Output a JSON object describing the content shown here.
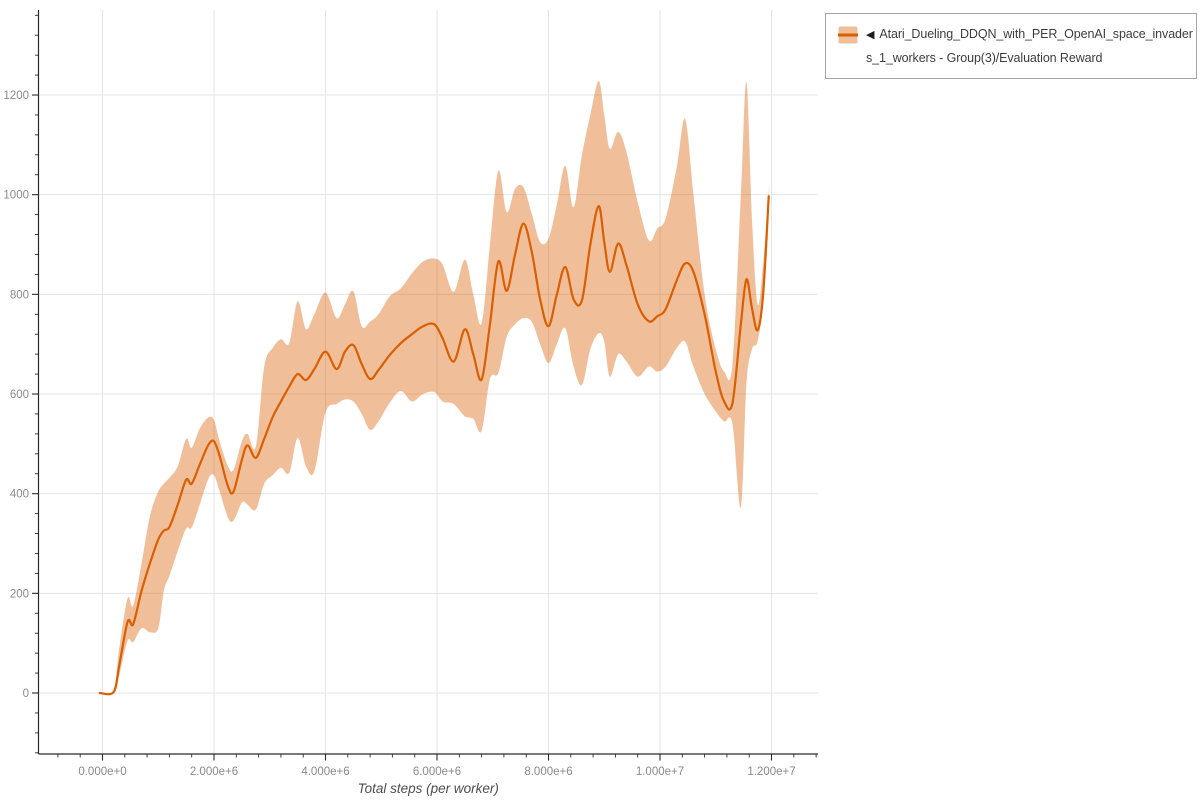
{
  "legend": {
    "marker_icon": "◀",
    "line1": "Atari_Dueling_DDQN_with_PER_OpenAI_space_invader",
    "line2": "s_1_workers - Group(3)/Evaluation Reward",
    "series_color": "#d95f02",
    "band_color": "rgba(217,95,2,0.4)"
  },
  "chart_data": {
    "type": "line",
    "title": "",
    "xlabel": "Total steps (per worker)",
    "ylabel": "",
    "grid": true,
    "legend_position": "top-right",
    "x_unit": "million steps",
    "xlim": [
      -1.148,
      12.834
    ],
    "ylim": [
      -122.4,
      1370.6
    ],
    "x_ticks": [
      "0.000e+0",
      "2.000e+6",
      "4.000e+6",
      "6.000e+6",
      "8.000e+6",
      "1.000e+7",
      "1.200e+7"
    ],
    "x_tick_values": [
      0,
      2,
      4,
      6,
      8,
      10,
      12
    ],
    "x_minor_step": 0.4,
    "y_ticks": [
      "0",
      "200",
      "400",
      "600",
      "800",
      "1000",
      "1200"
    ],
    "y_tick_values": [
      0,
      200,
      400,
      600,
      800,
      1000,
      1200
    ],
    "y_minor_step": 40,
    "series": [
      {
        "name": "Atari_Dueling_DDQN_with_PER_OpenAI_space_invaders_1_workers - Group(3)/Evaluation Reward",
        "color": "#d95f02",
        "x": [
          -0.05,
          0.2,
          0.3,
          0.45,
          0.55,
          0.7,
          0.85,
          1.0,
          1.1,
          1.2,
          1.35,
          1.5,
          1.6,
          1.75,
          1.9,
          2.0,
          2.1,
          2.25,
          2.35,
          2.5,
          2.6,
          2.75,
          2.9,
          3.05,
          3.2,
          3.35,
          3.5,
          3.65,
          3.8,
          4.0,
          4.2,
          4.35,
          4.5,
          4.65,
          4.8,
          4.95,
          5.15,
          5.35,
          5.55,
          5.75,
          5.95,
          6.1,
          6.3,
          6.5,
          6.65,
          6.8,
          6.95,
          7.1,
          7.25,
          7.4,
          7.55,
          7.7,
          7.85,
          8.0,
          8.15,
          8.3,
          8.45,
          8.6,
          8.75,
          8.9,
          9.0,
          9.1,
          9.25,
          9.4,
          9.6,
          9.8,
          9.95,
          10.1,
          10.3,
          10.45,
          10.6,
          10.8,
          11.0,
          11.15,
          11.3,
          11.45,
          11.55,
          11.65,
          11.75,
          11.85,
          11.95
        ],
        "mean": [
          0,
          2,
          55,
          143,
          138,
          205,
          260,
          308,
          326,
          333,
          378,
          428,
          420,
          460,
          498,
          505,
          476,
          415,
          404,
          468,
          497,
          472,
          510,
          553,
          585,
          615,
          640,
          628,
          650,
          685,
          650,
          685,
          698,
          660,
          630,
          648,
          678,
          702,
          720,
          736,
          740,
          712,
          665,
          730,
          680,
          629,
          740,
          866,
          807,
          880,
          942,
          885,
          790,
          736,
          800,
          855,
          790,
          788,
          900,
          977,
          905,
          845,
          902,
          858,
          780,
          746,
          756,
          770,
          828,
          862,
          845,
          760,
          645,
          585,
          582,
          740,
          830,
          772,
          728,
          800,
          997
        ],
        "band_upper": [
          0,
          6,
          90,
          190,
          175,
          260,
          355,
          404,
          420,
          432,
          455,
          510,
          492,
          532,
          553,
          548,
          505,
          455,
          448,
          505,
          520,
          495,
          655,
          692,
          710,
          702,
          786,
          730,
          760,
          804,
          752,
          780,
          806,
          736,
          745,
          760,
          796,
          812,
          842,
          866,
          872,
          860,
          805,
          870,
          800,
          742,
          900,
          1048,
          965,
          1012,
          1015,
          962,
          905,
          912,
          980,
          1058,
          975,
          1080,
          1160,
          1228,
          1160,
          1092,
          1126,
          1085,
          985,
          908,
          932,
          952,
          1055,
          1152,
          1000,
          800,
          690,
          645,
          660,
          1000,
          1226,
          950,
          780,
          862,
          1005
        ],
        "band_lower": [
          0,
          0,
          35,
          105,
          102,
          130,
          122,
          130,
          205,
          235,
          285,
          330,
          332,
          380,
          430,
          437,
          405,
          352,
          346,
          382,
          378,
          368,
          420,
          437,
          452,
          442,
          512,
          455,
          445,
          563,
          580,
          589,
          585,
          560,
          528,
          545,
          582,
          606,
          585,
          600,
          604,
          585,
          580,
          555,
          550,
          526,
          630,
          642,
          715,
          740,
          752,
          745,
          700,
          662,
          700,
          732,
          655,
          618,
          690,
          722,
          705,
          635,
          680,
          665,
          635,
          655,
          645,
          655,
          692,
          705,
          655,
          600,
          565,
          545,
          540,
          372,
          620,
          690,
          706,
          785,
          990
        ]
      }
    ]
  }
}
